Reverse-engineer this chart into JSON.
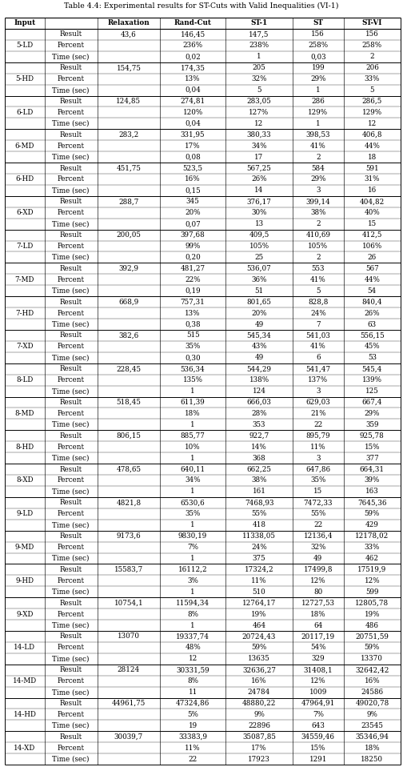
{
  "title": "Table 4.4: Experimental results for ST-Cuts with Valid Inequalities (VI-1)",
  "col_headers": [
    "Input",
    "",
    "Relaxation",
    "Rand-Cut",
    "ST-1",
    "ST",
    "ST-VI"
  ],
  "groups": [
    {
      "name": "5-LD",
      "result": "43,6",
      "rc": [
        "146,45",
        "236%",
        "0,02"
      ],
      "s1": [
        "147,5",
        "238%",
        "1"
      ],
      "st": [
        "156",
        "258%",
        "0,03"
      ],
      "sv": [
        "156",
        "258%",
        "2"
      ]
    },
    {
      "name": "5-HD",
      "result": "154,75",
      "rc": [
        "174,35",
        "13%",
        "0,04"
      ],
      "s1": [
        "205",
        "32%",
        "5"
      ],
      "st": [
        "199",
        "29%",
        "1"
      ],
      "sv": [
        "206",
        "33%",
        "5"
      ]
    },
    {
      "name": "6-LD",
      "result": "124,85",
      "rc": [
        "274,81",
        "120%",
        "0,04"
      ],
      "s1": [
        "283,05",
        "127%",
        "12"
      ],
      "st": [
        "286",
        "129%",
        "1"
      ],
      "sv": [
        "286,5",
        "129%",
        "12"
      ]
    },
    {
      "name": "6-MD",
      "result": "283,2",
      "rc": [
        "331,95",
        "17%",
        "0,08"
      ],
      "s1": [
        "380,33",
        "34%",
        "17"
      ],
      "st": [
        "398,53",
        "41%",
        "2"
      ],
      "sv": [
        "406,8",
        "44%",
        "18"
      ]
    },
    {
      "name": "6-HD",
      "result": "451,75",
      "rc": [
        "523,5",
        "16%",
        "0,15"
      ],
      "s1": [
        "567,25",
        "26%",
        "14"
      ],
      "st": [
        "584",
        "29%",
        "3"
      ],
      "sv": [
        "591",
        "31%",
        "16"
      ]
    },
    {
      "name": "6-XD",
      "result": "288,7",
      "rc": [
        "345",
        "20%",
        "0,07"
      ],
      "s1": [
        "376,17",
        "30%",
        "13"
      ],
      "st": [
        "399,14",
        "38%",
        "2"
      ],
      "sv": [
        "404,82",
        "40%",
        "15"
      ]
    },
    {
      "name": "7-LD",
      "result": "200,05",
      "rc": [
        "397,68",
        "99%",
        "0,20"
      ],
      "s1": [
        "409,5",
        "105%",
        "25"
      ],
      "st": [
        "410,69",
        "105%",
        "2"
      ],
      "sv": [
        "412,5",
        "106%",
        "26"
      ]
    },
    {
      "name": "7-MD",
      "result": "392,9",
      "rc": [
        "481,27",
        "22%",
        "0,19"
      ],
      "s1": [
        "536,07",
        "36%",
        "51"
      ],
      "st": [
        "553",
        "41%",
        "5"
      ],
      "sv": [
        "567",
        "44%",
        "54"
      ]
    },
    {
      "name": "7-HD",
      "result": "668,9",
      "rc": [
        "757,31",
        "13%",
        "0,38"
      ],
      "s1": [
        "801,65",
        "20%",
        "49"
      ],
      "st": [
        "828,8",
        "24%",
        "7"
      ],
      "sv": [
        "840,4",
        "26%",
        "63"
      ]
    },
    {
      "name": "7-XD",
      "result": "382,6",
      "rc": [
        "515",
        "35%",
        "0,30"
      ],
      "s1": [
        "545,34",
        "43%",
        "49"
      ],
      "st": [
        "541,03",
        "41%",
        "6"
      ],
      "sv": [
        "556,15",
        "45%",
        "53"
      ]
    },
    {
      "name": "8-LD",
      "result": "228,45",
      "rc": [
        "536,34",
        "135%",
        "1"
      ],
      "s1": [
        "544,29",
        "138%",
        "124"
      ],
      "st": [
        "541,47",
        "137%",
        "3"
      ],
      "sv": [
        "545,4",
        "139%",
        "125"
      ]
    },
    {
      "name": "8-MD",
      "result": "518,45",
      "rc": [
        "611,39",
        "18%",
        "1"
      ],
      "s1": [
        "666,03",
        "28%",
        "353"
      ],
      "st": [
        "629,03",
        "21%",
        "22"
      ],
      "sv": [
        "667,4",
        "29%",
        "359"
      ]
    },
    {
      "name": "8-HD",
      "result": "806,15",
      "rc": [
        "885,77",
        "10%",
        "1"
      ],
      "s1": [
        "922,7",
        "14%",
        "368"
      ],
      "st": [
        "895,79",
        "11%",
        "3"
      ],
      "sv": [
        "925,78",
        "15%",
        "377"
      ]
    },
    {
      "name": "8-XD",
      "result": "478,65",
      "rc": [
        "640,11",
        "34%",
        "1"
      ],
      "s1": [
        "662,25",
        "38%",
        "161"
      ],
      "st": [
        "647,86",
        "35%",
        "15"
      ],
      "sv": [
        "664,31",
        "39%",
        "163"
      ]
    },
    {
      "name": "9-LD",
      "result": "4821,8",
      "rc": [
        "6530,6",
        "35%",
        "1"
      ],
      "s1": [
        "7468,93",
        "55%",
        "418"
      ],
      "st": [
        "7472,33",
        "55%",
        "22"
      ],
      "sv": [
        "7645,36",
        "59%",
        "429"
      ]
    },
    {
      "name": "9-MD",
      "result": "9173,6",
      "rc": [
        "9830,19",
        "7%",
        "1"
      ],
      "s1": [
        "11338,05",
        "24%",
        "375"
      ],
      "st": [
        "12136,4",
        "32%",
        "49"
      ],
      "sv": [
        "12178,02",
        "33%",
        "462"
      ]
    },
    {
      "name": "9-HD",
      "result": "15583,7",
      "rc": [
        "16112,2",
        "3%",
        "1"
      ],
      "s1": [
        "17324,2",
        "11%",
        "510"
      ],
      "st": [
        "17499,8",
        "12%",
        "80"
      ],
      "sv": [
        "17519,9",
        "12%",
        "599"
      ]
    },
    {
      "name": "9-XD",
      "result": "10754,1",
      "rc": [
        "11594,34",
        "8%",
        "1"
      ],
      "s1": [
        "12764,17",
        "19%",
        "464"
      ],
      "st": [
        "12727,53",
        "18%",
        "64"
      ],
      "sv": [
        "12805,78",
        "19%",
        "486"
      ]
    },
    {
      "name": "14-LD",
      "result": "13070",
      "rc": [
        "19337,74",
        "48%",
        "12"
      ],
      "s1": [
        "20724,43",
        "59%",
        "13635"
      ],
      "st": [
        "20117,19",
        "54%",
        "329"
      ],
      "sv": [
        "20751,59",
        "59%",
        "13370"
      ]
    },
    {
      "name": "14-MD",
      "result": "28124",
      "rc": [
        "30331,59",
        "8%",
        "11"
      ],
      "s1": [
        "32636,27",
        "16%",
        "24784"
      ],
      "st": [
        "31408,1",
        "12%",
        "1009"
      ],
      "sv": [
        "32642,42",
        "16%",
        "24586"
      ]
    },
    {
      "name": "14-HD",
      "result": "44961,75",
      "rc": [
        "47324,86",
        "5%",
        "19"
      ],
      "s1": [
        "48880,22",
        "9%",
        "22896"
      ],
      "st": [
        "47964,91",
        "7%",
        "643"
      ],
      "sv": [
        "49020,78",
        "9%",
        "23545"
      ]
    },
    {
      "name": "14-XD",
      "result": "30039,7",
      "rc": [
        "33383,9",
        "11%",
        "22"
      ],
      "s1": [
        "35087,85",
        "17%",
        "17923"
      ],
      "st": [
        "34559,46",
        "15%",
        "1291"
      ],
      "sv": [
        "35346,94",
        "18%",
        "18250"
      ]
    }
  ],
  "row_labels": [
    "Result",
    "Percent",
    "Time (sec)"
  ],
  "figwidth": 5.04,
  "figheight": 9.58,
  "dpi": 100
}
